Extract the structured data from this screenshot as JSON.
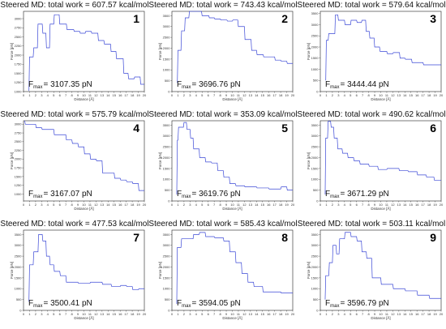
{
  "chart_data": [
    {
      "type": "line",
      "title": "Steered MD: total work = 607.57 kcal/mol",
      "panel": "1",
      "fmax_prefix": "F",
      "fmax_sub": "max",
      "fmax_value": "= 3107.35 pN",
      "xlabel": "Distance [Å]",
      "ylabel": "Force [pN]",
      "xlim": [
        0,
        20
      ],
      "ylim": [
        1000,
        3200
      ],
      "xticks": [
        "0",
        "1",
        "2",
        "3",
        "4",
        "5",
        "6",
        "7",
        "8",
        "9",
        "10",
        "11",
        "12",
        "13",
        "14",
        "15",
        "16",
        "17",
        "18",
        "19",
        "20"
      ],
      "yticks": [
        "1000",
        "1250",
        "1500",
        "1750",
        "2000",
        "2250",
        "2500",
        "2750",
        "3000"
      ],
      "color": "#3b48d6",
      "series": [
        {
          "x": [
            0.9,
            1.0,
            1.6,
            1.7,
            2.3,
            2.4,
            3.1,
            3.2,
            3.7,
            3.8,
            4.3,
            4.4,
            5.0,
            5.1,
            5.9,
            6.0,
            7.1,
            7.2,
            8.3,
            8.4,
            9.3,
            9.4,
            10.2,
            10.3,
            11.2,
            11.3,
            12.3,
            12.4,
            13.3,
            13.4,
            14.4,
            14.5,
            15.3,
            15.4,
            16.5,
            16.6,
            17.3,
            17.4,
            18.3,
            18.4,
            19.3,
            19.4,
            20.0
          ],
          "y": [
            1020,
            1950,
            1950,
            2200,
            2200,
            2850,
            2850,
            2600,
            2600,
            2200,
            2200,
            2850,
            2850,
            3107,
            3107,
            2850,
            2850,
            2700,
            2700,
            2650,
            2650,
            2600,
            2600,
            2650,
            2650,
            2600,
            2600,
            2400,
            2400,
            2300,
            2300,
            2100,
            2100,
            1900,
            1900,
            1500,
            1500,
            1350,
            1350,
            1400,
            1400,
            1200,
            1200
          ]
        }
      ]
    },
    {
      "type": "line",
      "title": "Steered MD: total work = 743.43 kcal/mol",
      "panel": "2",
      "fmax_prefix": "F",
      "fmax_sub": "max",
      "fmax_value": "= 3696.76 pN",
      "xlabel": "Distance [Å]",
      "ylabel": "Force [pN]",
      "xlim": [
        0,
        20
      ],
      "ylim": [
        0,
        3700
      ],
      "xticks": [
        "0",
        "1",
        "2",
        "3",
        "4",
        "5",
        "6",
        "7",
        "8",
        "9",
        "10",
        "11",
        "12",
        "13",
        "14",
        "15",
        "16",
        "17",
        "18",
        "19",
        "20"
      ],
      "yticks": [
        "0",
        "500",
        "1000",
        "1500",
        "2000",
        "2500",
        "3000",
        "3500"
      ],
      "color": "#3b48d6",
      "series": [
        {
          "x": [
            0.9,
            1.0,
            1.5,
            1.6,
            2.1,
            2.2,
            2.8,
            2.9,
            4.9,
            5.0,
            6.1,
            6.2,
            7.0,
            7.1,
            8.0,
            8.1,
            9.1,
            9.2,
            10.0,
            10.1,
            10.9,
            11.0,
            12.0,
            12.1,
            13.1,
            13.2,
            14.0,
            14.1,
            15.1,
            15.2,
            17.0,
            17.1,
            18.0,
            18.1,
            19.0,
            19.1,
            20.0
          ],
          "y": [
            400,
            1900,
            1900,
            2800,
            2800,
            3400,
            3400,
            3697,
            3697,
            3500,
            3500,
            3400,
            3400,
            3350,
            3350,
            3300,
            3300,
            3250,
            3250,
            3300,
            3300,
            3000,
            3000,
            2400,
            2400,
            1900,
            1900,
            1700,
            1700,
            1600,
            1600,
            1450,
            1450,
            1400,
            1400,
            1300,
            1300
          ]
        }
      ]
    },
    {
      "type": "line",
      "title": "Steered MD: total work = 579.64 kcal/mol",
      "panel": "3",
      "fmax_prefix": "F",
      "fmax_sub": "max",
      "fmax_value": "= 3444.44 pN",
      "xlabel": "Distance [Å]",
      "ylabel": "Force [pN]",
      "xlim": [
        0,
        20
      ],
      "ylim": [
        0,
        3600
      ],
      "xticks": [
        "0",
        "1",
        "2",
        "3",
        "4",
        "5",
        "6",
        "7",
        "8",
        "9",
        "10",
        "11",
        "12",
        "13",
        "14",
        "15",
        "16",
        "17",
        "18",
        "19",
        "20"
      ],
      "yticks": [
        "0",
        "500",
        "1000",
        "1500",
        "2000",
        "2500",
        "3000",
        "3500"
      ],
      "color": "#3b48d6",
      "series": [
        {
          "x": [
            0.9,
            1.0,
            1.3,
            1.4,
            2.4,
            2.5,
            2.9,
            3.0,
            4.0,
            4.1,
            5.0,
            5.1,
            6.0,
            6.1,
            6.8,
            6.9,
            7.5,
            7.6,
            8.1,
            8.2,
            8.9,
            9.0,
            9.8,
            9.9,
            11.0,
            11.1,
            12.0,
            12.1,
            13.1,
            13.2,
            14.0,
            14.1,
            15.1,
            15.2,
            17.0,
            17.1,
            20.0
          ],
          "y": [
            500,
            2300,
            2300,
            2600,
            2600,
            3444,
            3444,
            3200,
            3200,
            3000,
            3000,
            3200,
            3200,
            3100,
            3100,
            3200,
            3200,
            2700,
            2700,
            2400,
            2400,
            2000,
            2000,
            1800,
            1800,
            1700,
            1700,
            1750,
            1750,
            1500,
            1500,
            1450,
            1450,
            1300,
            1300,
            1200,
            1200
          ]
        }
      ]
    },
    {
      "type": "line",
      "title": "Steered MD: total work = 575.79 kcal/mol",
      "panel": "4",
      "fmax_prefix": "F",
      "fmax_sub": "max",
      "fmax_value": "= 3167.07 pN",
      "xlabel": "Distance [Å]",
      "ylabel": "Force [pN]",
      "xlim": [
        0,
        20
      ],
      "ylim": [
        800,
        3100
      ],
      "xticks": [
        "0",
        "1",
        "2",
        "3",
        "4",
        "5",
        "6",
        "7",
        "8",
        "9",
        "10",
        "11",
        "12",
        "13",
        "14",
        "15",
        "16",
        "17",
        "18",
        "19",
        "20"
      ],
      "yticks": [
        "1000",
        "1250",
        "1500",
        "1750",
        "2000",
        "2250",
        "2500",
        "2750",
        "3000"
      ],
      "color": "#3b48d6",
      "series": [
        {
          "x": [
            0.2,
            0.3,
            2.0,
            2.1,
            3.0,
            3.1,
            5.0,
            5.1,
            7.0,
            7.1,
            8.0,
            8.1,
            9.0,
            9.1,
            10.0,
            10.1,
            11.0,
            11.1,
            12.0,
            12.1,
            13.0,
            13.1,
            15.0,
            15.1,
            16.0,
            16.1,
            17.0,
            17.1,
            18.0,
            18.1,
            19.0,
            19.1,
            20.0
          ],
          "y": [
            3100,
            3000,
            3000,
            2900,
            2900,
            2850,
            2850,
            2700,
            2700,
            2550,
            2550,
            2450,
            2450,
            2350,
            2350,
            2150,
            2150,
            2000,
            2000,
            1950,
            1950,
            1600,
            1600,
            1450,
            1450,
            1400,
            1400,
            1350,
            1350,
            1300,
            1300,
            1100,
            1100
          ]
        }
      ]
    },
    {
      "type": "line",
      "title": "Steered MD: total work = 353.09 kcal/mol",
      "panel": "5",
      "fmax_prefix": "F",
      "fmax_sub": "max",
      "fmax_value": "= 3619.76 pN",
      "xlabel": "Distance [Å]",
      "ylabel": "Force [pN]",
      "xlim": [
        0,
        20
      ],
      "ylim": [
        0,
        3700
      ],
      "xticks": [
        "0",
        "1",
        "2",
        "3",
        "4",
        "5",
        "6",
        "7",
        "8",
        "9",
        "10",
        "11",
        "12",
        "13",
        "14",
        "15",
        "16",
        "17",
        "18",
        "19",
        "20"
      ],
      "yticks": [
        "0",
        "500",
        "1000",
        "1500",
        "2000",
        "2500",
        "3000",
        "3500"
      ],
      "color": "#3b48d6",
      "series": [
        {
          "x": [
            0.8,
            0.9,
            1.0,
            1.1,
            1.9,
            2.0,
            2.4,
            2.5,
            3.0,
            3.1,
            3.5,
            3.6,
            4.5,
            4.6,
            5.5,
            5.6,
            6.5,
            6.6,
            7.5,
            7.6,
            8.5,
            8.6,
            9.5,
            9.6,
            10.5,
            10.6,
            12.0,
            12.1,
            14.0,
            14.1,
            16.0,
            16.1,
            18.0,
            18.1,
            19.0,
            19.1,
            20.0
          ],
          "y": [
            300,
            2800,
            2800,
            3400,
            3400,
            3620,
            3620,
            3300,
            3300,
            2900,
            2900,
            2400,
            2400,
            2000,
            2000,
            1800,
            1800,
            1750,
            1750,
            1400,
            1400,
            1100,
            1100,
            800,
            800,
            700,
            700,
            650,
            650,
            600,
            600,
            550,
            550,
            650,
            650,
            500,
            500
          ]
        }
      ]
    },
    {
      "type": "line",
      "title": "Steered MD: total work = 490.62 kcal/mol",
      "panel": "6",
      "fmax_prefix": "F",
      "fmax_sub": "max",
      "fmax_value": "= 3671.29 pN",
      "xlabel": "Distance [Å]",
      "ylabel": "Force [pN]",
      "xlim": [
        0,
        20
      ],
      "ylim": [
        0,
        3700
      ],
      "xticks": [
        "0",
        "1",
        "2",
        "3",
        "4",
        "5",
        "6",
        "7",
        "8",
        "9",
        "10",
        "11",
        "12",
        "13",
        "14",
        "15",
        "16",
        "17",
        "18",
        "19",
        "20"
      ],
      "yticks": [
        "0",
        "500",
        "1000",
        "1500",
        "2000",
        "2500",
        "3000",
        "3500"
      ],
      "color": "#3b48d6",
      "series": [
        {
          "x": [
            0.8,
            0.9,
            1.2,
            1.3,
            1.7,
            1.8,
            2.2,
            2.3,
            2.8,
            2.9,
            3.6,
            3.7,
            4.5,
            4.6,
            5.5,
            5.6,
            6.5,
            6.6,
            8.0,
            8.1,
            9.5,
            9.6,
            11.0,
            11.1,
            13.0,
            13.1,
            14.5,
            14.6,
            16.0,
            16.1,
            17.5,
            17.6,
            18.8,
            18.9,
            20.0
          ],
          "y": [
            300,
            2900,
            2900,
            3671,
            3671,
            3400,
            3400,
            2900,
            2900,
            2400,
            2400,
            2200,
            2200,
            2000,
            2000,
            1850,
            1850,
            1700,
            1700,
            1600,
            1600,
            1450,
            1450,
            1500,
            1500,
            1400,
            1400,
            1350,
            1350,
            1200,
            1200,
            1100,
            1100,
            950,
            950
          ]
        }
      ]
    },
    {
      "type": "line",
      "title": "Steered MD: total work = 477.53 kcal/mol",
      "panel": "7",
      "fmax_prefix": "F",
      "fmax_sub": "max",
      "fmax_value": "= 3500.41 pN",
      "xlabel": "Distance [Å]",
      "ylabel": "Force [pN]",
      "xlim": [
        0,
        20
      ],
      "ylim": [
        0,
        3700
      ],
      "xticks": [
        "0",
        "1",
        "2",
        "3",
        "4",
        "5",
        "6",
        "7",
        "8",
        "9",
        "10",
        "11",
        "12",
        "13",
        "14",
        "15",
        "16",
        "17",
        "18",
        "19",
        "20"
      ],
      "yticks": [
        "0",
        "500",
        "1000",
        "1500",
        "2000",
        "2500",
        "3000",
        "3500"
      ],
      "color": "#3b48d6",
      "series": [
        {
          "x": [
            0.9,
            1.0,
            1.6,
            1.7,
            2.4,
            2.5,
            3.1,
            3.2,
            3.7,
            3.8,
            4.3,
            4.4,
            5.0,
            5.1,
            6.0,
            6.1,
            7.0,
            7.1,
            9.0,
            9.1,
            11.0,
            11.1,
            13.0,
            13.1,
            14.5,
            14.6,
            16.0,
            16.1,
            17.0,
            17.1,
            18.0,
            18.1,
            19.0,
            19.1,
            20.0
          ],
          "y": [
            400,
            2100,
            2100,
            2700,
            2700,
            3500,
            3500,
            3200,
            3200,
            2500,
            2500,
            2100,
            2100,
            1800,
            1800,
            1600,
            1600,
            1300,
            1300,
            1250,
            1250,
            1300,
            1300,
            1200,
            1200,
            1100,
            1100,
            1150,
            1150,
            1100,
            1100,
            950,
            950,
            1000,
            1000
          ]
        }
      ]
    },
    {
      "type": "line",
      "title": "Steered MD: total work = 585.43 kcal/mol",
      "panel": "8",
      "fmax_prefix": "F",
      "fmax_sub": "max",
      "fmax_value": "= 3594.05 pN",
      "xlabel": "Distance [Å]",
      "ylabel": "Force [pN]",
      "xlim": [
        0,
        20
      ],
      "ylim": [
        0,
        3700
      ],
      "xticks": [
        "0",
        "1",
        "2",
        "3",
        "4",
        "5",
        "6",
        "7",
        "8",
        "9",
        "10",
        "11",
        "12",
        "13",
        "14",
        "15",
        "16",
        "17",
        "18",
        "19",
        "20"
      ],
      "yticks": [
        "0",
        "500",
        "1000",
        "1500",
        "2000",
        "2500",
        "3000",
        "3500"
      ],
      "color": "#3b48d6",
      "series": [
        {
          "x": [
            0.8,
            0.9,
            1.5,
            1.6,
            3.5,
            3.6,
            4.5,
            4.6,
            5.5,
            5.6,
            7.0,
            7.1,
            8.5,
            8.6,
            9.5,
            9.6,
            10.5,
            10.6,
            11.5,
            11.6,
            12.5,
            12.6,
            13.5,
            13.6,
            15.0,
            15.1,
            18.0,
            18.1,
            20.0
          ],
          "y": [
            300,
            2900,
            2900,
            3300,
            3300,
            3500,
            3500,
            3594,
            3594,
            3400,
            3400,
            3350,
            3350,
            3200,
            3200,
            2700,
            2700,
            2200,
            2200,
            1700,
            1700,
            1300,
            1300,
            1100,
            1100,
            850,
            850,
            800,
            800
          ]
        }
      ]
    },
    {
      "type": "line",
      "title": "Steered MD: total work = 503.11 kcal/mol",
      "panel": "9",
      "fmax_prefix": "F",
      "fmax_sub": "max",
      "fmax_value": "= 3596.79 pN",
      "xlabel": "Distance [Å]",
      "ylabel": "Force [pN]",
      "xlim": [
        0,
        20
      ],
      "ylim": [
        0,
        3700
      ],
      "xticks": [
        "0",
        "1",
        "2",
        "3",
        "4",
        "5",
        "6",
        "7",
        "8",
        "9",
        "10",
        "11",
        "12",
        "13",
        "14",
        "15",
        "16",
        "17",
        "18",
        "19",
        "20"
      ],
      "yticks": [
        "0",
        "500",
        "1000",
        "1500",
        "2000",
        "2500",
        "3000",
        "3500"
      ],
      "color": "#3b48d6",
      "series": [
        {
          "x": [
            0.8,
            0.9,
            1.4,
            1.5,
            2.0,
            2.1,
            2.6,
            2.7,
            3.1,
            3.2,
            4.0,
            4.1,
            5.0,
            5.1,
            6.0,
            6.1,
            6.8,
            6.9,
            7.6,
            7.7,
            8.5,
            8.6,
            10.0,
            10.1,
            12.0,
            12.1,
            14.0,
            14.1,
            16.0,
            16.1,
            18.0,
            18.1,
            20.0
          ],
          "y": [
            500,
            1600,
            1600,
            2200,
            2200,
            3000,
            3000,
            2600,
            2600,
            3300,
            3300,
            3597,
            3597,
            3400,
            3400,
            3200,
            3200,
            2700,
            2700,
            2400,
            2400,
            1500,
            1500,
            1200,
            1200,
            1000,
            1000,
            900,
            900,
            700,
            700,
            550,
            550
          ]
        }
      ]
    }
  ]
}
